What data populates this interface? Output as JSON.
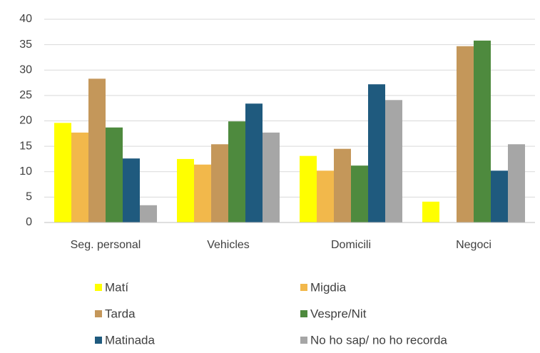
{
  "chart_data": {
    "type": "bar",
    "categories": [
      "Seg. personal",
      "Vehicles",
      "Domicili",
      "Negoci"
    ],
    "series": [
      {
        "name": "Matí",
        "color": "#ffff00",
        "values": [
          19.6,
          12.5,
          13.1,
          4.1
        ]
      },
      {
        "name": "Migdia",
        "color": "#f2b84b",
        "values": [
          17.7,
          11.4,
          10.2,
          0
        ]
      },
      {
        "name": "Tarda",
        "color": "#c4975a",
        "values": [
          28.3,
          15.4,
          14.5,
          34.7
        ]
      },
      {
        "name": "Vespre/Nit",
        "color": "#4e8a3e",
        "values": [
          18.7,
          19.9,
          11.2,
          35.8
        ]
      },
      {
        "name": "Matinada",
        "color": "#1f5a7e",
        "values": [
          12.6,
          23.4,
          27.2,
          10.2
        ]
      },
      {
        "name": "No ho sap/ no ho recorda",
        "color": "#a6a6a6",
        "values": [
          3.4,
          17.7,
          24.1,
          15.4
        ]
      }
    ],
    "ylim": [
      0,
      40
    ],
    "yticks": [
      0,
      5,
      10,
      15,
      20,
      25,
      30,
      35,
      40
    ],
    "grid": true
  }
}
